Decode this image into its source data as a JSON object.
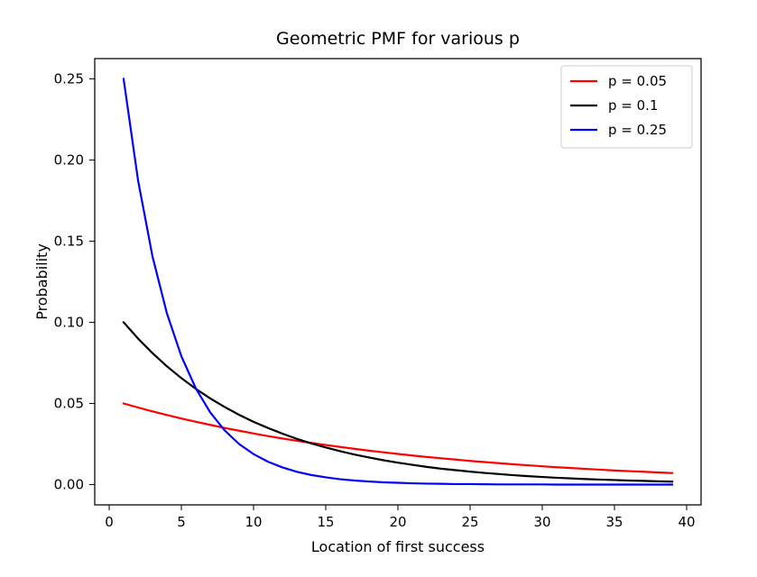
{
  "chart_data": {
    "type": "line",
    "title": "Geometric PMF for various p",
    "xlabel": "Location of first success",
    "ylabel": "Probability",
    "xlim": [
      -1.0,
      41.0
    ],
    "ylim": [
      -0.0125,
      0.2625
    ],
    "xticks": [
      0,
      5,
      10,
      15,
      20,
      25,
      30,
      35,
      40
    ],
    "xtick_labels": [
      "0",
      "5",
      "10",
      "15",
      "20",
      "25",
      "30",
      "35",
      "40"
    ],
    "yticks": [
      0.0,
      0.05,
      0.1,
      0.15,
      0.2,
      0.25
    ],
    "ytick_labels": [
      "0.00",
      "0.05",
      "0.10",
      "0.15",
      "0.20",
      "0.25"
    ],
    "grid": false,
    "legend_position": "top-right",
    "x": [
      1,
      2,
      3,
      4,
      5,
      6,
      7,
      8,
      9,
      10,
      11,
      12,
      13,
      14,
      15,
      16,
      17,
      18,
      19,
      20,
      21,
      22,
      23,
      24,
      25,
      26,
      27,
      28,
      29,
      30,
      31,
      32,
      33,
      34,
      35,
      36,
      37,
      38,
      39
    ],
    "series": [
      {
        "name": "p = 0.05",
        "color": "#ff0000",
        "values": [
          0.05,
          0.0475,
          0.0451,
          0.0429,
          0.0407,
          0.0387,
          0.0368,
          0.0349,
          0.0332,
          0.0315,
          0.0299,
          0.0284,
          0.027,
          0.0257,
          0.0244,
          0.0232,
          0.022,
          0.0209,
          0.0199,
          0.0189,
          0.0179,
          0.017,
          0.0162,
          0.0154,
          0.0146,
          0.0139,
          0.0132,
          0.0125,
          0.0119,
          0.0113,
          0.0107,
          0.0102,
          0.0097,
          0.0092,
          0.0087,
          0.0083,
          0.0079,
          0.0075,
          0.0071
        ]
      },
      {
        "name": "p = 0.1",
        "color": "#000000",
        "values": [
          0.1,
          0.09,
          0.081,
          0.0729,
          0.0656,
          0.059,
          0.0531,
          0.0478,
          0.043,
          0.0387,
          0.0349,
          0.0314,
          0.0282,
          0.0254,
          0.0229,
          0.0206,
          0.0185,
          0.0167,
          0.015,
          0.0135,
          0.0122,
          0.0109,
          0.0098,
          0.0089,
          0.008,
          0.0072,
          0.0065,
          0.0058,
          0.0052,
          0.0047,
          0.0042,
          0.0038,
          0.0034,
          0.0031,
          0.0028,
          0.0025,
          0.0023,
          0.002,
          0.0018
        ]
      },
      {
        "name": "p = 0.25",
        "color": "#0000ff",
        "values": [
          0.25,
          0.1875,
          0.1406,
          0.1055,
          0.0791,
          0.0593,
          0.0445,
          0.0334,
          0.025,
          0.0188,
          0.0141,
          0.0106,
          0.0079,
          0.0059,
          0.0045,
          0.0033,
          0.0025,
          0.0019,
          0.0014,
          0.0011,
          0.0008,
          0.0006,
          0.0005,
          0.0003,
          0.0003,
          0.0002,
          0.0001,
          0.0001,
          0.0001,
          0.0001,
          0.0,
          0.0,
          0.0,
          0.0,
          0.0,
          0.0,
          0.0,
          0.0,
          0.0
        ]
      }
    ]
  }
}
